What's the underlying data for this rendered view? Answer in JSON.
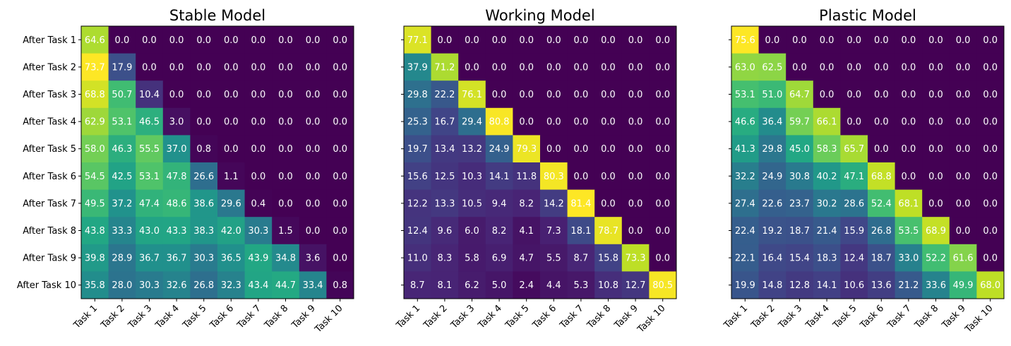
{
  "chart_data": [
    {
      "type": "heatmap",
      "title": "Stable Model",
      "rows": [
        "After Task 1",
        "After Task 2",
        "After Task 3",
        "After Task 4",
        "After Task 5",
        "After Task 6",
        "After Task 7",
        "After Task 8",
        "After Task 9",
        "After Task 10"
      ],
      "columns": [
        "Task 1",
        "Task 2",
        "Task 3",
        "Task 4",
        "Task 5",
        "Task 6",
        "Task 7",
        "Task 8",
        "Task 9",
        "Task 10"
      ],
      "values": [
        [
          64.6,
          0.0,
          0.0,
          0.0,
          0.0,
          0.0,
          0.0,
          0.0,
          0.0,
          0.0
        ],
        [
          73.7,
          17.9,
          0.0,
          0.0,
          0.0,
          0.0,
          0.0,
          0.0,
          0.0,
          0.0
        ],
        [
          68.8,
          50.7,
          10.4,
          0.0,
          0.0,
          0.0,
          0.0,
          0.0,
          0.0,
          0.0
        ],
        [
          62.9,
          53.1,
          46.5,
          3.0,
          0.0,
          0.0,
          0.0,
          0.0,
          0.0,
          0.0
        ],
        [
          58.0,
          46.3,
          55.5,
          37.0,
          0.8,
          0.0,
          0.0,
          0.0,
          0.0,
          0.0
        ],
        [
          54.5,
          42.5,
          53.1,
          47.8,
          26.6,
          1.1,
          0.0,
          0.0,
          0.0,
          0.0
        ],
        [
          49.5,
          37.2,
          47.4,
          48.6,
          38.6,
          29.6,
          0.4,
          0.0,
          0.0,
          0.0
        ],
        [
          43.8,
          33.3,
          43.0,
          43.3,
          38.3,
          42.0,
          30.3,
          1.5,
          0.0,
          0.0
        ],
        [
          39.8,
          28.9,
          36.7,
          36.7,
          30.3,
          36.5,
          43.9,
          34.8,
          3.6,
          0.0
        ],
        [
          35.8,
          28.0,
          30.3,
          32.6,
          26.8,
          32.3,
          43.4,
          44.7,
          33.4,
          0.8
        ]
      ]
    },
    {
      "type": "heatmap",
      "title": "Working Model",
      "rows": [
        "After Task 1",
        "After Task 2",
        "After Task 3",
        "After Task 4",
        "After Task 5",
        "After Task 6",
        "After Task 7",
        "After Task 8",
        "After Task 9",
        "After Task 10"
      ],
      "columns": [
        "Task 1",
        "Task 2",
        "Task 3",
        "Task 4",
        "Task 5",
        "Task 6",
        "Task 7",
        "Task 8",
        "Task 9",
        "Task 10"
      ],
      "values": [
        [
          77.1,
          0.0,
          0.0,
          0.0,
          0.0,
          0.0,
          0.0,
          0.0,
          0.0,
          0.0
        ],
        [
          37.9,
          71.2,
          0.0,
          0.0,
          0.0,
          0.0,
          0.0,
          0.0,
          0.0,
          0.0
        ],
        [
          29.8,
          22.2,
          76.1,
          0.0,
          0.0,
          0.0,
          0.0,
          0.0,
          0.0,
          0.0
        ],
        [
          25.3,
          16.7,
          29.4,
          80.8,
          0.0,
          0.0,
          0.0,
          0.0,
          0.0,
          0.0
        ],
        [
          19.7,
          13.4,
          13.2,
          24.9,
          79.3,
          0.0,
          0.0,
          0.0,
          0.0,
          0.0
        ],
        [
          15.6,
          12.5,
          10.3,
          14.1,
          11.8,
          80.3,
          0.0,
          0.0,
          0.0,
          0.0
        ],
        [
          12.2,
          13.3,
          10.5,
          9.4,
          8.2,
          14.2,
          81.4,
          0.0,
          0.0,
          0.0
        ],
        [
          12.4,
          9.6,
          6.0,
          8.2,
          4.1,
          7.3,
          18.1,
          78.7,
          0.0,
          0.0
        ],
        [
          11.0,
          8.3,
          5.8,
          6.9,
          4.7,
          5.5,
          8.7,
          15.8,
          73.3,
          0.0
        ],
        [
          8.7,
          8.1,
          6.2,
          5.0,
          2.4,
          4.4,
          5.3,
          10.8,
          12.7,
          80.5
        ]
      ]
    },
    {
      "type": "heatmap",
      "title": "Plastic Model",
      "rows": [
        "After Task 1",
        "After Task 2",
        "After Task 3",
        "After Task 4",
        "After Task 5",
        "After Task 6",
        "After Task 7",
        "After Task 8",
        "After Task 9",
        "After Task 10"
      ],
      "columns": [
        "Task 1",
        "Task 2",
        "Task 3",
        "Task 4",
        "Task 5",
        "Task 6",
        "Task 7",
        "Task 8",
        "Task 9",
        "Task 10"
      ],
      "values": [
        [
          75.6,
          0.0,
          0.0,
          0.0,
          0.0,
          0.0,
          0.0,
          0.0,
          0.0,
          0.0
        ],
        [
          63.0,
          62.5,
          0.0,
          0.0,
          0.0,
          0.0,
          0.0,
          0.0,
          0.0,
          0.0
        ],
        [
          53.1,
          51.0,
          64.7,
          0.0,
          0.0,
          0.0,
          0.0,
          0.0,
          0.0,
          0.0
        ],
        [
          46.6,
          36.4,
          59.7,
          66.1,
          0.0,
          0.0,
          0.0,
          0.0,
          0.0,
          0.0
        ],
        [
          41.3,
          29.8,
          45.0,
          58.3,
          65.7,
          0.0,
          0.0,
          0.0,
          0.0,
          0.0
        ],
        [
          32.2,
          24.9,
          30.8,
          40.2,
          47.1,
          68.8,
          0.0,
          0.0,
          0.0,
          0.0
        ],
        [
          27.4,
          22.6,
          23.7,
          30.2,
          28.6,
          52.4,
          68.1,
          0.0,
          0.0,
          0.0
        ],
        [
          22.4,
          19.2,
          18.7,
          21.4,
          15.9,
          26.8,
          53.5,
          68.9,
          0.0,
          0.0
        ],
        [
          22.1,
          16.4,
          15.4,
          18.3,
          12.4,
          18.7,
          33.0,
          52.2,
          61.6,
          0.0
        ],
        [
          19.9,
          14.8,
          12.8,
          14.1,
          10.6,
          13.6,
          21.2,
          33.6,
          49.9,
          68.0
        ]
      ]
    }
  ],
  "colormap": "viridis",
  "cell_text_color": "#ffffff"
}
